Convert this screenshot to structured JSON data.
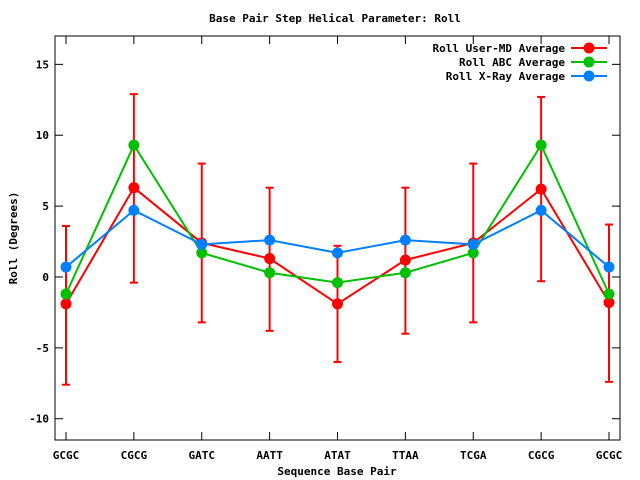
{
  "chart_data": {
    "type": "line",
    "title": "Base Pair Step Helical Parameter: Roll",
    "xlabel": "Sequence Base Pair",
    "ylabel": "Roll (Degrees)",
    "categories": [
      "GCGC",
      "CGCG",
      "GATC",
      "AATT",
      "ATAT",
      "TTAA",
      "TCGA",
      "CGCG",
      "GCGC"
    ],
    "ylim": [
      -11.5,
      17
    ],
    "yticks": [
      -10,
      -5,
      0,
      5,
      10,
      15
    ],
    "grid": false,
    "legend_position": "top-right",
    "series": [
      {
        "name": "Roll User-MD Average",
        "color": "#ff0000",
        "values": [
          -1.9,
          6.3,
          2.4,
          1.3,
          -1.9,
          1.2,
          2.4,
          6.2,
          -1.8
        ],
        "error_low": [
          -7.6,
          -0.4,
          -3.2,
          -3.8,
          -6.0,
          -4.0,
          -3.2,
          -0.3,
          -7.4
        ],
        "error_high": [
          3.6,
          12.9,
          8.0,
          6.3,
          2.2,
          6.3,
          8.0,
          12.7,
          3.7
        ]
      },
      {
        "name": "Roll ABC Average",
        "color": "#00c000",
        "values": [
          -1.2,
          9.3,
          1.7,
          0.3,
          -0.4,
          0.3,
          1.7,
          9.3,
          -1.2
        ]
      },
      {
        "name": "Roll X-Ray Average",
        "color": "#0080ff",
        "values": [
          0.7,
          4.7,
          2.3,
          2.6,
          1.7,
          2.6,
          2.3,
          4.7,
          0.7
        ]
      }
    ]
  }
}
